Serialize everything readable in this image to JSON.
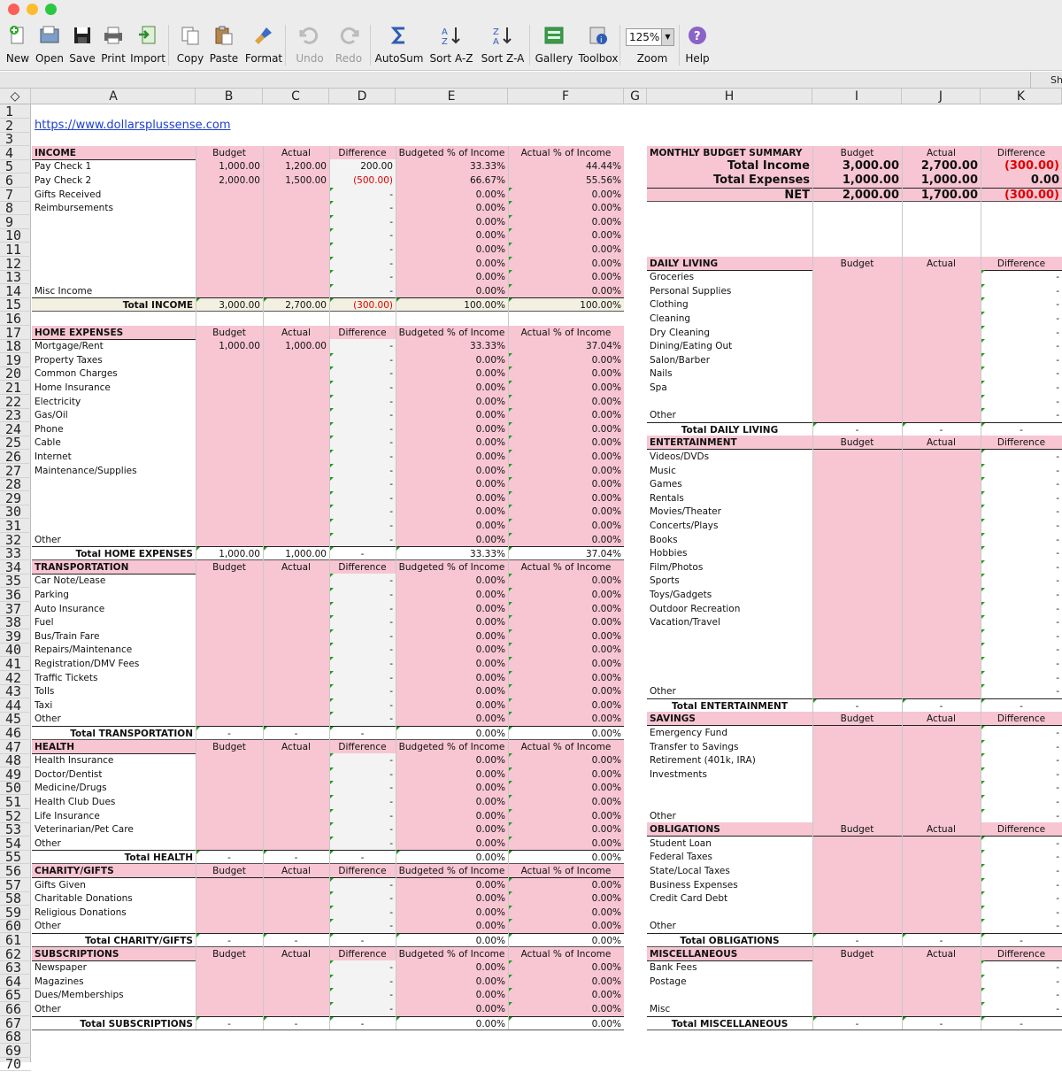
{
  "toolbar": {
    "items": [
      {
        "label": "New",
        "icon": "new-doc-icon"
      },
      {
        "label": "Open",
        "icon": "open-icon"
      },
      {
        "label": "Save",
        "icon": "save-icon"
      },
      {
        "label": "Print",
        "icon": "print-icon"
      },
      {
        "label": "Import",
        "icon": "import-icon"
      },
      {
        "label": "Copy",
        "icon": "copy-icon"
      },
      {
        "label": "Paste",
        "icon": "paste-icon"
      },
      {
        "label": "Format",
        "icon": "format-brush-icon"
      },
      {
        "label": "Undo",
        "icon": "undo-icon"
      },
      {
        "label": "Redo",
        "icon": "redo-icon"
      },
      {
        "label": "AutoSum",
        "icon": "sigma-icon"
      },
      {
        "label": "Sort A-Z",
        "icon": "sort-az-icon"
      },
      {
        "label": "Sort Z-A",
        "icon": "sort-za-icon"
      },
      {
        "label": "Gallery",
        "icon": "gallery-icon"
      },
      {
        "label": "Toolbox",
        "icon": "toolbox-icon"
      },
      {
        "label": "Zoom",
        "icon": "zoom-icon"
      },
      {
        "label": "Help",
        "icon": "help-icon"
      }
    ],
    "zoom_value": "125%"
  },
  "sheet_tab": "Sh",
  "columns": [
    "A",
    "B",
    "C",
    "D",
    "E",
    "F",
    "G",
    "H",
    "I",
    "J",
    "K"
  ],
  "url": "https://www.dollarsplussense.com",
  "colors": {
    "pink": "#f7c6d2",
    "cream": "#f3f0e2",
    "red": "#e00000",
    "green_marker": "#1a9e1a"
  },
  "left_sections": [
    {
      "start": 4,
      "title": "INCOME",
      "total_label": "Total INCOME",
      "total": [
        "3,000.00",
        "2,700.00",
        "(300.00)",
        "100.00%",
        "100.00%"
      ],
      "rows": [
        [
          "Pay Check 1",
          "1,000.00",
          "1,200.00",
          "200.00",
          "33.33%",
          "44.44%"
        ],
        [
          "Pay Check 2",
          "2,000.00",
          "1,500.00",
          "(500.00)",
          "66.67%",
          "55.56%"
        ],
        [
          "Gifts Received",
          "",
          "",
          "-",
          "0.00%",
          "0.00%"
        ],
        [
          "Reimbursements",
          "",
          "",
          "-",
          "0.00%",
          "0.00%"
        ],
        [
          "",
          "",
          "",
          "-",
          "0.00%",
          "0.00%"
        ],
        [
          "",
          "",
          "",
          "-",
          "0.00%",
          "0.00%"
        ],
        [
          "",
          "",
          "",
          "-",
          "0.00%",
          "0.00%"
        ],
        [
          "",
          "",
          "",
          "-",
          "0.00%",
          "0.00%"
        ],
        [
          "",
          "",
          "",
          "-",
          "0.00%",
          "0.00%"
        ],
        [
          "Misc Income",
          "",
          "",
          "-",
          "0.00%",
          "0.00%"
        ]
      ]
    },
    {
      "start": 17,
      "title": "HOME EXPENSES",
      "total_label": "Total HOME EXPENSES",
      "total": [
        "1,000.00",
        "1,000.00",
        "-",
        "33.33%",
        "37.04%"
      ],
      "rows": [
        [
          "Mortgage/Rent",
          "1,000.00",
          "1,000.00",
          "-",
          "33.33%",
          "37.04%"
        ],
        [
          "Property Taxes",
          "",
          "",
          "-",
          "0.00%",
          "0.00%"
        ],
        [
          "Common Charges",
          "",
          "",
          "-",
          "0.00%",
          "0.00%"
        ],
        [
          "Home Insurance",
          "",
          "",
          "-",
          "0.00%",
          "0.00%"
        ],
        [
          "Electricity",
          "",
          "",
          "-",
          "0.00%",
          "0.00%"
        ],
        [
          "Gas/Oil",
          "",
          "",
          "-",
          "0.00%",
          "0.00%"
        ],
        [
          "Phone",
          "",
          "",
          "-",
          "0.00%",
          "0.00%"
        ],
        [
          "Cable",
          "",
          "",
          "-",
          "0.00%",
          "0.00%"
        ],
        [
          "Internet",
          "",
          "",
          "-",
          "0.00%",
          "0.00%"
        ],
        [
          "Maintenance/Supplies",
          "",
          "",
          "-",
          "0.00%",
          "0.00%"
        ],
        [
          "",
          "",
          "",
          "-",
          "0.00%",
          "0.00%"
        ],
        [
          "",
          "",
          "",
          "-",
          "0.00%",
          "0.00%"
        ],
        [
          "",
          "",
          "",
          "-",
          "0.00%",
          "0.00%"
        ],
        [
          "",
          "",
          "",
          "-",
          "0.00%",
          "0.00%"
        ],
        [
          "Other",
          "",
          "",
          "-",
          "0.00%",
          "0.00%"
        ]
      ]
    },
    {
      "start": 34,
      "title": "TRANSPORTATION",
      "total_label": "Total TRANSPORTATION",
      "total": [
        "-",
        "-",
        "-",
        "0.00%",
        "0.00%"
      ],
      "rows": [
        [
          "Car Note/Lease",
          "",
          "",
          "-",
          "0.00%",
          "0.00%"
        ],
        [
          "Parking",
          "",
          "",
          "-",
          "0.00%",
          "0.00%"
        ],
        [
          "Auto Insurance",
          "",
          "",
          "-",
          "0.00%",
          "0.00%"
        ],
        [
          "Fuel",
          "",
          "",
          "-",
          "0.00%",
          "0.00%"
        ],
        [
          "Bus/Train Fare",
          "",
          "",
          "-",
          "0.00%",
          "0.00%"
        ],
        [
          "Repairs/Maintenance",
          "",
          "",
          "-",
          "0.00%",
          "0.00%"
        ],
        [
          "Registration/DMV Fees",
          "",
          "",
          "-",
          "0.00%",
          "0.00%"
        ],
        [
          "Traffic Tickets",
          "",
          "",
          "-",
          "0.00%",
          "0.00%"
        ],
        [
          "Tolls",
          "",
          "",
          "-",
          "0.00%",
          "0.00%"
        ],
        [
          "Taxi",
          "",
          "",
          "-",
          "0.00%",
          "0.00%"
        ],
        [
          "Other",
          "",
          "",
          "-",
          "0.00%",
          "0.00%"
        ]
      ]
    },
    {
      "start": 47,
      "title": "HEALTH",
      "total_label": "Total HEALTH",
      "total": [
        "-",
        "-",
        "-",
        "0.00%",
        "0.00%"
      ],
      "rows": [
        [
          "Health Insurance",
          "",
          "",
          "-",
          "0.00%",
          "0.00%"
        ],
        [
          "Doctor/Dentist",
          "",
          "",
          "-",
          "0.00%",
          "0.00%"
        ],
        [
          "Medicine/Drugs",
          "",
          "",
          "-",
          "0.00%",
          "0.00%"
        ],
        [
          "Health Club Dues",
          "",
          "",
          "-",
          "0.00%",
          "0.00%"
        ],
        [
          "Life Insurance",
          "",
          "",
          "-",
          "0.00%",
          "0.00%"
        ],
        [
          "Veterinarian/Pet Care",
          "",
          "",
          "-",
          "0.00%",
          "0.00%"
        ],
        [
          "Other",
          "",
          "",
          "-",
          "0.00%",
          "0.00%"
        ]
      ]
    },
    {
      "start": 56,
      "title": "CHARITY/GIFTS",
      "total_label": "Total CHARITY/GIFTS",
      "total": [
        "-",
        "-",
        "-",
        "0.00%",
        "0.00%"
      ],
      "rows": [
        [
          "Gifts Given",
          "",
          "",
          "-",
          "0.00%",
          "0.00%"
        ],
        [
          "Charitable Donations",
          "",
          "",
          "-",
          "0.00%",
          "0.00%"
        ],
        [
          "Religious Donations",
          "",
          "",
          "-",
          "0.00%",
          "0.00%"
        ],
        [
          "Other",
          "",
          "",
          "-",
          "0.00%",
          "0.00%"
        ]
      ]
    },
    {
      "start": 62,
      "title": "SUBSCRIPTIONS",
      "total_label": "Total SUBSCRIPTIONS",
      "total": [
        "-",
        "-",
        "-",
        "0.00%",
        "0.00%"
      ],
      "rows": [
        [
          "Newspaper",
          "",
          "",
          "-",
          "0.00%",
          "0.00%"
        ],
        [
          "Magazines",
          "",
          "",
          "-",
          "0.00%",
          "0.00%"
        ],
        [
          "Dues/Memberships",
          "",
          "",
          "-",
          "0.00%",
          "0.00%"
        ],
        [
          "Other",
          "",
          "",
          "-",
          "0.00%",
          "0.00%"
        ]
      ]
    }
  ],
  "left_headers": [
    "Budget",
    "Actual",
    "Difference",
    "Budgeted % of Income",
    "Actual % of Income"
  ],
  "summary": {
    "title": "MONTHLY BUDGET SUMMARY",
    "headers": [
      "Budget",
      "Actual",
      "Difference"
    ],
    "rows": [
      [
        "Total Income",
        "3,000.00",
        "2,700.00",
        "(300.00)"
      ],
      [
        "Total Expenses",
        "1,000.00",
        "1,000.00",
        "0.00"
      ],
      [
        "NET",
        "2,000.00",
        "1,700.00",
        "(300.00)"
      ]
    ]
  },
  "right_headers": [
    "Budget",
    "Actual",
    "Difference"
  ],
  "right_sections": [
    {
      "start": 12,
      "title": "DAILY LIVING",
      "total_label": "Total DAILY LIVING",
      "rows": [
        "Groceries",
        "Personal Supplies",
        "Clothing",
        "Cleaning",
        "Dry Cleaning",
        "Dining/Eating Out",
        "Salon/Barber",
        "Nails",
        "Spa",
        "",
        "Other"
      ]
    },
    {
      "start": 25,
      "title": "ENTERTAINMENT",
      "total_label": "Total ENTERTAINMENT",
      "rows": [
        "Videos/DVDs",
        "Music",
        "Games",
        "Rentals",
        "Movies/Theater",
        "Concerts/Plays",
        "Books",
        "Hobbies",
        "Film/Photos",
        "Sports",
        "Toys/Gadgets",
        "Outdoor Recreation",
        "Vacation/Travel",
        "",
        "",
        "",
        "",
        "Other"
      ]
    },
    {
      "start": 45,
      "title": "SAVINGS",
      "total_label": "Total SAVINGS",
      "rows": [
        "Emergency Fund",
        "Transfer to Savings",
        "Retirement (401k, IRA)",
        "Investments",
        "",
        "",
        "Other"
      ]
    },
    {
      "start": 53,
      "title": "OBLIGATIONS",
      "total_label": "Total OBLIGATIONS",
      "rows": [
        "Student Loan",
        "Federal Taxes",
        "State/Local Taxes",
        "Business Expenses",
        "Credit Card Debt",
        "",
        "Other"
      ]
    },
    {
      "start": 62,
      "title": "MISCELLANEOUS",
      "total_label": "Total MISCELLANEOUS",
      "rows": [
        "Bank Fees",
        "Postage",
        "",
        "Misc"
      ]
    }
  ]
}
